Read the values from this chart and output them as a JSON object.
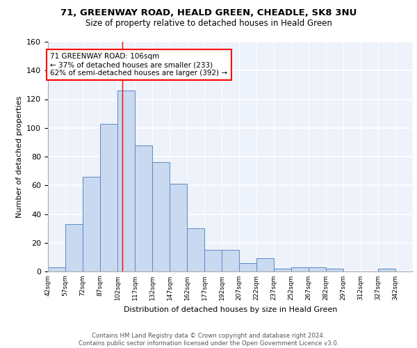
{
  "title1": "71, GREENWAY ROAD, HEALD GREEN, CHEADLE, SK8 3NU",
  "title2": "Size of property relative to detached houses in Heald Green",
  "xlabel": "Distribution of detached houses by size in Heald Green",
  "ylabel": "Number of detached properties",
  "bin_labels": [
    "42sqm",
    "57sqm",
    "72sqm",
    "87sqm",
    "102sqm",
    "117sqm",
    "132sqm",
    "147sqm",
    "162sqm",
    "177sqm",
    "192sqm",
    "207sqm",
    "222sqm",
    "237sqm",
    "252sqm",
    "267sqm",
    "282sqm",
    "297sqm",
    "312sqm",
    "327sqm",
    "342sqm"
  ],
  "bin_edges": [
    42,
    57,
    72,
    87,
    102,
    117,
    132,
    147,
    162,
    177,
    192,
    207,
    222,
    237,
    252,
    267,
    282,
    297,
    312,
    327,
    342
  ],
  "counts": [
    3,
    33,
    66,
    103,
    126,
    88,
    76,
    61,
    30,
    15,
    15,
    6,
    9,
    2,
    3,
    3,
    2,
    0,
    0,
    2
  ],
  "bar_color": "#c9d9f0",
  "bar_edge_color": "#5b8ac5",
  "property_size": 106,
  "annotation_line1": "71 GREENWAY ROAD: 106sqm",
  "annotation_line2": "← 37% of detached houses are smaller (233)",
  "annotation_line3": "62% of semi-detached houses are larger (392) →",
  "annotation_box_color": "white",
  "annotation_box_edge": "red",
  "red_line_x": 106,
  "ylim": [
    0,
    160
  ],
  "yticks": [
    0,
    20,
    40,
    60,
    80,
    100,
    120,
    140,
    160
  ],
  "footer": "Contains HM Land Registry data © Crown copyright and database right 2024.\nContains public sector information licensed under the Open Government Licence v3.0.",
  "bg_color": "#eef2fa",
  "grid_color": "#ffffff"
}
